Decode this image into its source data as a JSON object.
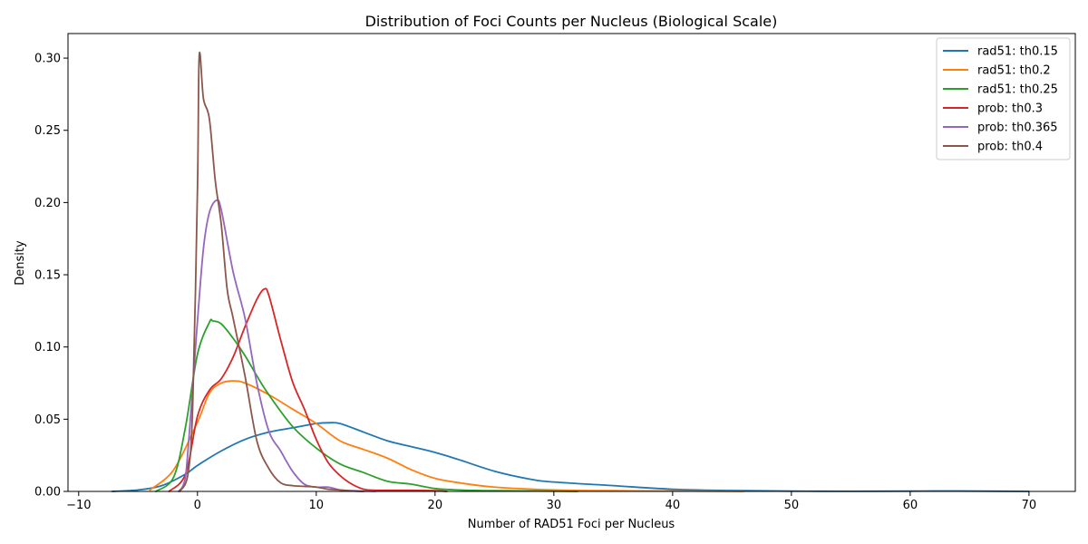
{
  "chart_data": {
    "type": "line",
    "title": "Distribution of Foci Counts per Nucleus (Biological Scale)",
    "xlabel": "Number of RAD51 Foci per Nucleus",
    "ylabel": "Density",
    "xlim": [
      -10.9,
      73.9
    ],
    "ylim": [
      0,
      0.317
    ],
    "xticks": [
      -10,
      0,
      10,
      20,
      30,
      40,
      50,
      60,
      70
    ],
    "yticks": [
      0.0,
      0.05,
      0.1,
      0.15,
      0.2,
      0.25,
      0.3
    ],
    "xtick_labels": [
      "−10",
      "0",
      "10",
      "20",
      "30",
      "40",
      "50",
      "60",
      "70"
    ],
    "ytick_labels": [
      "0.00",
      "0.05",
      "0.10",
      "0.15",
      "0.20",
      "0.25",
      "0.30"
    ],
    "grid": false,
    "legend_position": "top-right",
    "series": [
      {
        "name": "rad51: th0.15",
        "color": "#1f77b4",
        "x": [
          -7.2,
          -5,
          -3,
          -1,
          0,
          2,
          4,
          6,
          8,
          10,
          11,
          12,
          14,
          16,
          18,
          20,
          22,
          25,
          28,
          30,
          35,
          40,
          45,
          50,
          55,
          60,
          63,
          66,
          70
        ],
        "y": [
          0.0,
          0.001,
          0.004,
          0.012,
          0.018,
          0.028,
          0.036,
          0.041,
          0.044,
          0.047,
          0.0475,
          0.047,
          0.041,
          0.035,
          0.031,
          0.027,
          0.022,
          0.014,
          0.0085,
          0.0065,
          0.004,
          0.0015,
          0.0006,
          0.0002,
          0.0001,
          0.0002,
          0.0003,
          0.0002,
          0.0
        ]
      },
      {
        "name": "rad51: th0.2",
        "color": "#ff7f0e",
        "x": [
          -4,
          -2,
          0,
          1,
          2,
          3,
          4,
          6,
          8,
          10,
          12,
          14,
          16,
          18,
          20,
          22,
          25,
          30,
          35,
          40,
          46
        ],
        "y": [
          0.001,
          0.015,
          0.048,
          0.068,
          0.075,
          0.0765,
          0.075,
          0.067,
          0.057,
          0.047,
          0.035,
          0.029,
          0.023,
          0.015,
          0.009,
          0.006,
          0.003,
          0.001,
          0.0005,
          0.0003,
          0.0
        ]
      },
      {
        "name": "rad51: th0.25",
        "color": "#2ca02c",
        "x": [
          -3.5,
          -2,
          -1,
          0,
          1,
          1.3,
          2,
          3,
          4,
          5,
          6,
          8,
          10,
          12,
          14,
          16,
          18,
          20,
          22,
          25,
          30,
          32
        ],
        "y": [
          0.0,
          0.01,
          0.045,
          0.095,
          0.117,
          0.118,
          0.116,
          0.106,
          0.094,
          0.08,
          0.067,
          0.045,
          0.03,
          0.019,
          0.013,
          0.007,
          0.005,
          0.002,
          0.001,
          0.0005,
          0.0002,
          0.0
        ]
      },
      {
        "name": "prob: th0.3",
        "color": "#d62728",
        "x": [
          -2.4,
          -1,
          0,
          1,
          2,
          3,
          4,
          5,
          5.6,
          6,
          7,
          8,
          9,
          10,
          11,
          12,
          13,
          14,
          15,
          18,
          20,
          21
        ],
        "y": [
          0.0,
          0.012,
          0.052,
          0.07,
          0.078,
          0.093,
          0.114,
          0.133,
          0.14,
          0.136,
          0.105,
          0.076,
          0.057,
          0.036,
          0.02,
          0.011,
          0.005,
          0.0015,
          0.0008,
          0.0008,
          0.0005,
          0.0
        ]
      },
      {
        "name": "prob: th0.365",
        "color": "#9467bd",
        "x": [
          -1.6,
          -1,
          0,
          0.5,
          1,
          1.6,
          2,
          3,
          4,
          5,
          6,
          7,
          8,
          9,
          10,
          11,
          12,
          13,
          15
        ],
        "y": [
          0.0,
          0.01,
          0.118,
          0.168,
          0.193,
          0.2015,
          0.195,
          0.152,
          0.12,
          0.075,
          0.042,
          0.028,
          0.014,
          0.005,
          0.003,
          0.003,
          0.001,
          0.0005,
          0.0
        ]
      },
      {
        "name": "prob: th0.4",
        "color": "#8c564b",
        "x": [
          -1.5,
          -0.8,
          -0.4,
          0,
          0.15,
          0.5,
          1,
          1.5,
          2,
          2.5,
          3,
          4,
          5,
          6,
          7,
          8,
          9,
          10,
          11,
          12,
          13,
          14
        ],
        "y": [
          0.0,
          0.012,
          0.06,
          0.21,
          0.302,
          0.272,
          0.258,
          0.215,
          0.185,
          0.14,
          0.12,
          0.08,
          0.035,
          0.016,
          0.006,
          0.004,
          0.0035,
          0.003,
          0.0015,
          0.001,
          0.0003,
          0.0
        ]
      }
    ]
  }
}
